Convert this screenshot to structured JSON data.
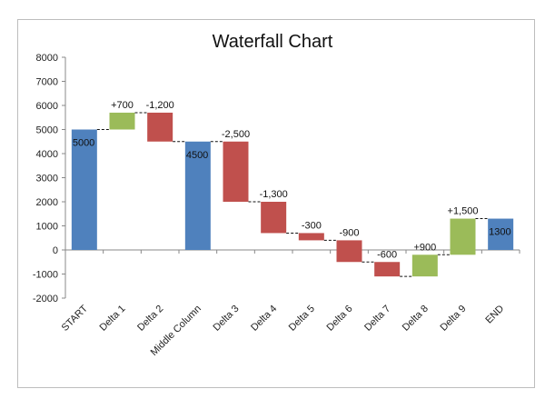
{
  "chart_data": {
    "type": "waterfall",
    "title": "Waterfall Chart",
    "xlabel": "",
    "ylabel": "",
    "ylim": [
      -2000,
      8000
    ],
    "yticks": [
      "8000",
      "7000",
      "6000",
      "5000",
      "4000",
      "3000",
      "2000",
      "1000",
      "0",
      "-1000",
      "-2000"
    ],
    "categories": [
      "START",
      "Delta 1",
      "Delta 2",
      "Middle Column",
      "Delta 3",
      "Delta 4",
      "Delta 5",
      "Delta 6",
      "Delta 7",
      "Delta 8",
      "Delta 9",
      "END"
    ],
    "bars": [
      {
        "kind": "total",
        "start": 0,
        "end": 5000,
        "label": "5000"
      },
      {
        "kind": "up",
        "start": 5000,
        "end": 5700,
        "label": "+700"
      },
      {
        "kind": "down",
        "start": 5700,
        "end": 4500,
        "label": "-1,200"
      },
      {
        "kind": "total",
        "start": 0,
        "end": 4500,
        "label": "4500"
      },
      {
        "kind": "down",
        "start": 4500,
        "end": 2000,
        "label": "-2,500"
      },
      {
        "kind": "down",
        "start": 2000,
        "end": 700,
        "label": "-1,300"
      },
      {
        "kind": "down",
        "start": 700,
        "end": 400,
        "label": "-300"
      },
      {
        "kind": "down",
        "start": 400,
        "end": -500,
        "label": "-900"
      },
      {
        "kind": "down",
        "start": -500,
        "end": -1100,
        "label": "-600"
      },
      {
        "kind": "up",
        "start": -1100,
        "end": -200,
        "label": "+900"
      },
      {
        "kind": "up",
        "start": -200,
        "end": 1300,
        "label": "+1,500"
      },
      {
        "kind": "total",
        "start": 0,
        "end": 1300,
        "label": "1300"
      }
    ],
    "colors": {
      "total": "#4f81bd",
      "up": "#9bbb59",
      "down": "#c0504d"
    },
    "grid": false,
    "legend": "none"
  }
}
